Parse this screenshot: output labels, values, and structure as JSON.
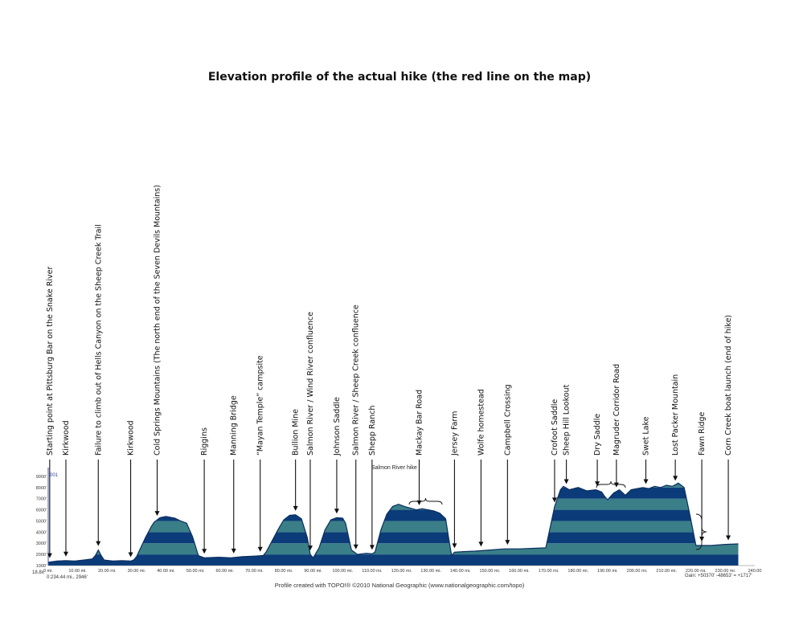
{
  "page_title": "Elevation profile of the actual hike (the red line on the map)",
  "credit": "Profile created with TOPO!® ©2010 National Geographic (www.nationalgeographic.com/topo)",
  "footer_left_scale": "18.8x",
  "footer_left_readout": "0:234.44 mi., 2946'",
  "footer_right_gain": "Gain: +50370' -48653' = +1717'",
  "unit_tag": "001",
  "series_label": "Salmon River hike",
  "colors": {
    "band_dark": "#0b3c79",
    "band_light": "#3a7f88",
    "outline": "#0b2f5f",
    "axis": "#3c4fb0"
  },
  "chart_data": {
    "type": "area",
    "xlim": [
      0,
      240
    ],
    "ylim": [
      1000,
      9500
    ],
    "x_ticks": [
      "0 mi.",
      "10.00 mi.",
      "20.00 mi.",
      "30.00 mi.",
      "40.00 mi.",
      "50.00 mi.",
      "60.00 mi.",
      "70.00 mi.",
      "80.00 mi.",
      "90.00 mi.",
      "100.00 mi.",
      "110.00 mi.",
      "120.00 mi.",
      "130.00 mi.",
      "140.00 mi.",
      "150.00 mi.",
      "160.00 mi.",
      "170.00 mi.",
      "180.00 mi.",
      "190.00 mi.",
      "200.00 mi.",
      "210.00 mi.",
      "220.00 mi.",
      "230.00 mi.",
      "240.00"
    ],
    "y_ticks": [
      "1000'",
      "2000'",
      "3000'",
      "4000'",
      "5000'",
      "6000'",
      "7000'",
      "8000'",
      "9000'"
    ],
    "x": [
      0,
      3,
      6,
      9,
      12,
      15,
      16,
      17,
      18,
      19,
      22,
      25,
      28,
      29,
      30,
      33,
      35,
      36,
      38,
      40,
      43,
      45,
      47,
      49,
      51,
      53,
      58,
      62,
      66,
      70,
      73,
      74,
      76,
      78,
      80,
      82,
      84,
      86,
      88,
      89,
      90,
      92,
      94,
      96,
      98,
      100,
      101,
      103,
      105,
      108,
      110,
      111,
      113,
      115,
      117,
      119,
      121,
      123,
      125,
      127,
      129,
      131,
      133,
      135,
      136,
      137,
      138,
      141,
      145,
      150,
      155,
      160,
      165,
      169,
      170,
      172,
      174,
      175,
      177,
      180,
      183,
      186,
      188,
      189,
      190,
      192,
      194,
      196,
      198,
      200,
      202,
      204,
      206,
      208,
      210,
      212,
      214,
      215,
      216,
      218,
      220,
      225,
      230,
      234.4
    ],
    "y": [
      1300,
      1400,
      1450,
      1400,
      1500,
      1600,
      1900,
      2400,
      1900,
      1500,
      1400,
      1450,
      1400,
      1500,
      1800,
      3500,
      4500,
      4900,
      5300,
      5400,
      5250,
      5000,
      4800,
      3600,
      1900,
      1700,
      1750,
      1700,
      1800,
      1850,
      1900,
      2200,
      3200,
      4200,
      5100,
      5500,
      5550,
      5200,
      3500,
      2000,
      1700,
      2600,
      4200,
      5100,
      5300,
      5250,
      4800,
      2400,
      2000,
      2100,
      2050,
      2200,
      4200,
      5600,
      6300,
      6500,
      6300,
      6150,
      6000,
      6100,
      6000,
      5900,
      5700,
      5200,
      3500,
      1900,
      2200,
      2250,
      2300,
      2400,
      2500,
      2500,
      2550,
      2600,
      3800,
      6300,
      7800,
      8100,
      7800,
      8000,
      7700,
      7800,
      7600,
      7200,
      6900,
      7500,
      7800,
      7300,
      7800,
      7900,
      8000,
      7900,
      8100,
      8000,
      8200,
      8100,
      8400,
      8200,
      8000,
      5500,
      2800,
      2800,
      2900,
      2946
    ],
    "annotations": [
      {
        "label": "Starting point at Pittsburg Bar on the Snake River",
        "x": 0.5
      },
      {
        "label": "Kirkwood",
        "x": 6
      },
      {
        "label": "Failure to  climb out of Hells Canyon on the Sheep Creek Trail",
        "x": 17
      },
      {
        "label": "Kirkwood",
        "x": 28
      },
      {
        "label": "Cold Springs Mountains (The north end of the Seven Devils Mountains)",
        "x": 37
      },
      {
        "label": "Riggins",
        "x": 53
      },
      {
        "label": "Manning Bridge",
        "x": 63
      },
      {
        "label": "“Mayan Temple” campsite",
        "x": 72
      },
      {
        "label": "Bullion Mine",
        "x": 84
      },
      {
        "label": "Salmon River / Wind River confluence",
        "x": 89
      },
      {
        "label": "Johnson Saddle",
        "x": 98
      },
      {
        "label": "Salmon River / Sheep Creek confluence",
        "x": 104.5
      },
      {
        "label": "Shepp Ranch",
        "x": 110
      },
      {
        "label": "Mackay Bar Road",
        "x": 126
      },
      {
        "label": "Jersey Farm",
        "x": 138
      },
      {
        "label": "Wolfe homestead",
        "x": 147
      },
      {
        "label": "Campbell Crossing",
        "x": 156
      },
      {
        "label": "Crofoot Saddle",
        "x": 172
      },
      {
        "label": "Sheep Hill Lookout",
        "x": 176
      },
      {
        "label": "Dry Saddle",
        "x": 186.5
      },
      {
        "label": "Magruder Corridor Road",
        "x": 193
      },
      {
        "label": "Swet Lake",
        "x": 203
      },
      {
        "label": "Lost Packer Mountain",
        "x": 213
      },
      {
        "label": "Fawn Ridge",
        "x": 222
      },
      {
        "label": "Corn Creek boat launch (end of hike)",
        "x": 231
      }
    ]
  }
}
